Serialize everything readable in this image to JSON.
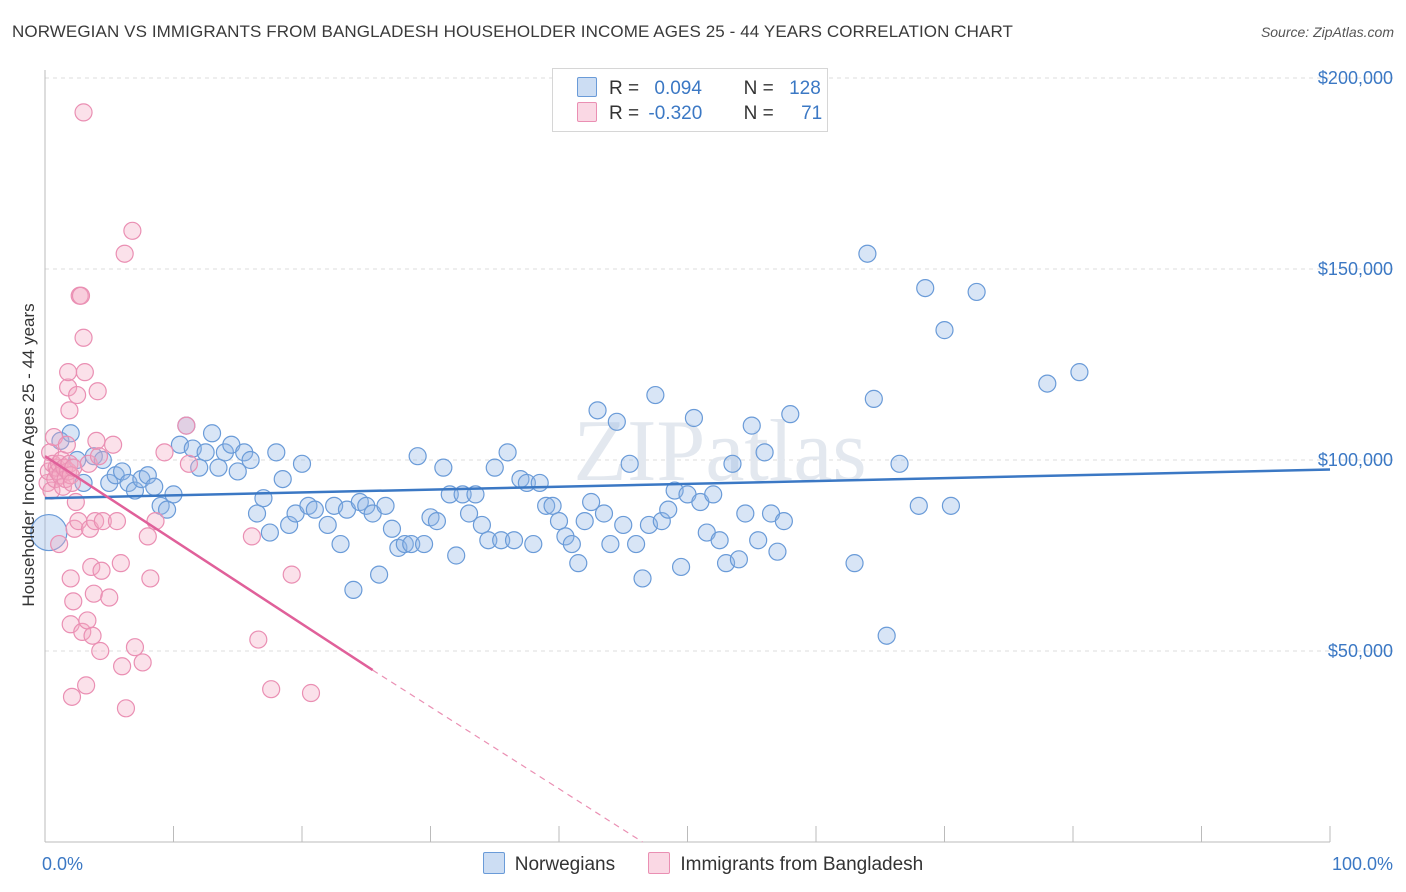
{
  "title": "NORWEGIAN VS IMMIGRANTS FROM BANGLADESH HOUSEHOLDER INCOME AGES 25 - 44 YEARS CORRELATION CHART",
  "source": "Source: ZipAtlas.com",
  "watermark": "ZIPatlas",
  "colors": {
    "blue": "#3b78c4",
    "blue_fill": "rgba(142,180,228,0.35)",
    "blue_stroke": "#6a9bd8",
    "pink": "#e0609a",
    "pink_fill": "rgba(244,168,196,0.35)",
    "pink_stroke": "#ea8fb3"
  },
  "legend_top": {
    "rows": [
      {
        "r_label": "R =",
        "r_value": "0.094",
        "n_label": "N =",
        "n_value": "128"
      },
      {
        "r_label": "R =",
        "r_value": "-0.320",
        "n_label": "N =",
        "n_value": "71"
      }
    ]
  },
  "legend_bottom": [
    "Norwegians",
    "Immigrants from Bangladesh"
  ],
  "chart_data": {
    "type": "scatter",
    "title": "NORWEGIAN VS IMMIGRANTS FROM BANGLADESH HOUSEHOLDER INCOME AGES 25 - 44 YEARS CORRELATION CHART",
    "xlabel": "",
    "ylabel": "Householder Income Ages 25 - 44 years",
    "xlim": [
      0,
      100
    ],
    "ylim": [
      0,
      210000
    ],
    "x_tick_labels": [
      "0.0%",
      "100.0%"
    ],
    "y_ticks": [
      50000,
      100000,
      150000,
      200000
    ],
    "y_tick_labels": [
      "$50,000",
      "$100,000",
      "$150,000",
      "$200,000"
    ],
    "grid": true,
    "legend_position": "bottom",
    "series": [
      {
        "name": "Norwegians",
        "color": "#3b78c4",
        "trend": {
          "x0": 0,
          "y0": 90000,
          "x1": 100,
          "y1": 97500
        },
        "points": [
          [
            1.2,
            105000
          ],
          [
            2.0,
            107000
          ],
          [
            2.5,
            100000
          ],
          [
            3.0,
            94000
          ],
          [
            3.8,
            101000
          ],
          [
            4.5,
            100000
          ],
          [
            5.0,
            94000
          ],
          [
            5.5,
            96000
          ],
          [
            6.0,
            97000
          ],
          [
            6.5,
            94000
          ],
          [
            7.0,
            92000
          ],
          [
            7.5,
            95000
          ],
          [
            8.0,
            96000
          ],
          [
            8.5,
            93000
          ],
          [
            9.0,
            88000
          ],
          [
            9.5,
            87000
          ],
          [
            10.0,
            91000
          ],
          [
            10.5,
            104000
          ],
          [
            11.0,
            109000
          ],
          [
            11.5,
            103000
          ],
          [
            12.0,
            98000
          ],
          [
            12.5,
            102000
          ],
          [
            13.0,
            107000
          ],
          [
            13.5,
            98000
          ],
          [
            14.0,
            102000
          ],
          [
            14.5,
            104000
          ],
          [
            15.0,
            97000
          ],
          [
            15.5,
            102000
          ],
          [
            16.0,
            100000
          ],
          [
            16.5,
            86000
          ],
          [
            17.0,
            90000
          ],
          [
            17.5,
            81000
          ],
          [
            18.0,
            102000
          ],
          [
            18.5,
            95000
          ],
          [
            19.0,
            83000
          ],
          [
            19.5,
            86000
          ],
          [
            20.0,
            99000
          ],
          [
            20.5,
            88000
          ],
          [
            21.0,
            87000
          ],
          [
            22.0,
            83000
          ],
          [
            22.5,
            88000
          ],
          [
            23.0,
            78000
          ],
          [
            23.5,
            87000
          ],
          [
            24.0,
            66000
          ],
          [
            24.5,
            89000
          ],
          [
            25.0,
            88000
          ],
          [
            25.5,
            86000
          ],
          [
            26.0,
            70000
          ],
          [
            26.5,
            88000
          ],
          [
            27.0,
            82000
          ],
          [
            27.5,
            77000
          ],
          [
            28.0,
            78000
          ],
          [
            28.5,
            78000
          ],
          [
            29.0,
            101000
          ],
          [
            29.5,
            78000
          ],
          [
            30.0,
            85000
          ],
          [
            30.5,
            84000
          ],
          [
            31.0,
            98000
          ],
          [
            31.5,
            91000
          ],
          [
            32.0,
            75000
          ],
          [
            32.5,
            91000
          ],
          [
            33.0,
            86000
          ],
          [
            33.5,
            91000
          ],
          [
            34.0,
            83000
          ],
          [
            34.5,
            79000
          ],
          [
            35.0,
            98000
          ],
          [
            35.5,
            79000
          ],
          [
            36.0,
            102000
          ],
          [
            36.5,
            79000
          ],
          [
            37.0,
            95000
          ],
          [
            37.5,
            94000
          ],
          [
            38.0,
            78000
          ],
          [
            38.5,
            94000
          ],
          [
            39.0,
            88000
          ],
          [
            39.5,
            88000
          ],
          [
            40.0,
            84000
          ],
          [
            40.5,
            80000
          ],
          [
            41.0,
            78000
          ],
          [
            41.5,
            73000
          ],
          [
            42.0,
            84000
          ],
          [
            42.5,
            89000
          ],
          [
            43.0,
            113000
          ],
          [
            43.5,
            86000
          ],
          [
            44.0,
            78000
          ],
          [
            44.5,
            110000
          ],
          [
            45.0,
            83000
          ],
          [
            45.5,
            99000
          ],
          [
            46.0,
            78000
          ],
          [
            46.5,
            69000
          ],
          [
            47.0,
            83000
          ],
          [
            47.5,
            117000
          ],
          [
            48.0,
            84000
          ],
          [
            48.5,
            87000
          ],
          [
            49.0,
            92000
          ],
          [
            49.5,
            72000
          ],
          [
            50.0,
            91000
          ],
          [
            50.5,
            111000
          ],
          [
            51.0,
            89000
          ],
          [
            51.5,
            81000
          ],
          [
            52.0,
            91000
          ],
          [
            52.5,
            79000
          ],
          [
            53.0,
            73000
          ],
          [
            53.5,
            99000
          ],
          [
            54.0,
            74000
          ],
          [
            54.5,
            86000
          ],
          [
            55.0,
            109000
          ],
          [
            55.5,
            79000
          ],
          [
            56.0,
            102000
          ],
          [
            56.5,
            86000
          ],
          [
            57.0,
            76000
          ],
          [
            57.5,
            84000
          ],
          [
            58.0,
            112000
          ],
          [
            63.0,
            73000
          ],
          [
            64.0,
            154000
          ],
          [
            64.5,
            116000
          ],
          [
            65.5,
            54000
          ],
          [
            66.5,
            99000
          ],
          [
            68.0,
            88000
          ],
          [
            68.5,
            145000
          ],
          [
            70.0,
            134000
          ],
          [
            70.5,
            88000
          ],
          [
            72.5,
            144000
          ],
          [
            78.0,
            120000
          ],
          [
            80.5,
            123000
          ],
          [
            0.3,
            81000
          ]
        ]
      },
      {
        "name": "Immigrants from Bangladesh",
        "color": "#e0609a",
        "trend": {
          "x0": 0,
          "y0": 101000,
          "x1": 25.5,
          "y1": 45000,
          "dash_to_x": 46.5,
          "dash_to_y": 0
        },
        "points": [
          [
            0.2,
            94000
          ],
          [
            0.3,
            97000
          ],
          [
            0.4,
            102000
          ],
          [
            0.5,
            92000
          ],
          [
            0.6,
            99000
          ],
          [
            0.7,
            106000
          ],
          [
            0.8,
            95000
          ],
          [
            0.9,
            98000
          ],
          [
            1.0,
            97000
          ],
          [
            1.1,
            99000
          ],
          [
            1.2,
            96000
          ],
          [
            1.3,
            100000
          ],
          [
            1.4,
            93000
          ],
          [
            1.5,
            98000
          ],
          [
            1.6,
            95000
          ],
          [
            1.7,
            104000
          ],
          [
            1.8,
            97000
          ],
          [
            1.9,
            99000
          ],
          [
            2.0,
            96000
          ],
          [
            2.1,
            94000
          ],
          [
            2.2,
            98000
          ],
          [
            1.1,
            78000
          ],
          [
            1.8,
            119000
          ],
          [
            1.8,
            123000
          ],
          [
            1.9,
            113000
          ],
          [
            2.0,
            69000
          ],
          [
            2.0,
            57000
          ],
          [
            2.1,
            38000
          ],
          [
            2.2,
            63000
          ],
          [
            2.3,
            82000
          ],
          [
            2.4,
            89000
          ],
          [
            2.5,
            117000
          ],
          [
            2.6,
            84000
          ],
          [
            2.7,
            143000
          ],
          [
            2.8,
            143000
          ],
          [
            2.9,
            55000
          ],
          [
            3.0,
            132000
          ],
          [
            3.1,
            123000
          ],
          [
            3.2,
            41000
          ],
          [
            3.3,
            58000
          ],
          [
            3.4,
            99000
          ],
          [
            3.5,
            82000
          ],
          [
            3.6,
            72000
          ],
          [
            3.7,
            54000
          ],
          [
            3.8,
            65000
          ],
          [
            3.9,
            84000
          ],
          [
            4.0,
            105000
          ],
          [
            4.1,
            118000
          ],
          [
            4.2,
            101000
          ],
          [
            4.3,
            50000
          ],
          [
            4.4,
            71000
          ],
          [
            4.5,
            84000
          ],
          [
            5.0,
            64000
          ],
          [
            5.3,
            104000
          ],
          [
            5.6,
            84000
          ],
          [
            5.9,
            73000
          ],
          [
            6.0,
            46000
          ],
          [
            6.2,
            154000
          ],
          [
            6.3,
            35000
          ],
          [
            6.8,
            160000
          ],
          [
            7.0,
            51000
          ],
          [
            7.6,
            47000
          ],
          [
            8.0,
            80000
          ],
          [
            8.2,
            69000
          ],
          [
            8.6,
            84000
          ],
          [
            9.3,
            102000
          ],
          [
            11.0,
            109000
          ],
          [
            11.2,
            99000
          ],
          [
            16.1,
            80000
          ],
          [
            16.6,
            53000
          ],
          [
            17.6,
            40000
          ],
          [
            19.2,
            70000
          ],
          [
            20.7,
            39000
          ],
          [
            3.0,
            191000
          ]
        ]
      }
    ]
  }
}
